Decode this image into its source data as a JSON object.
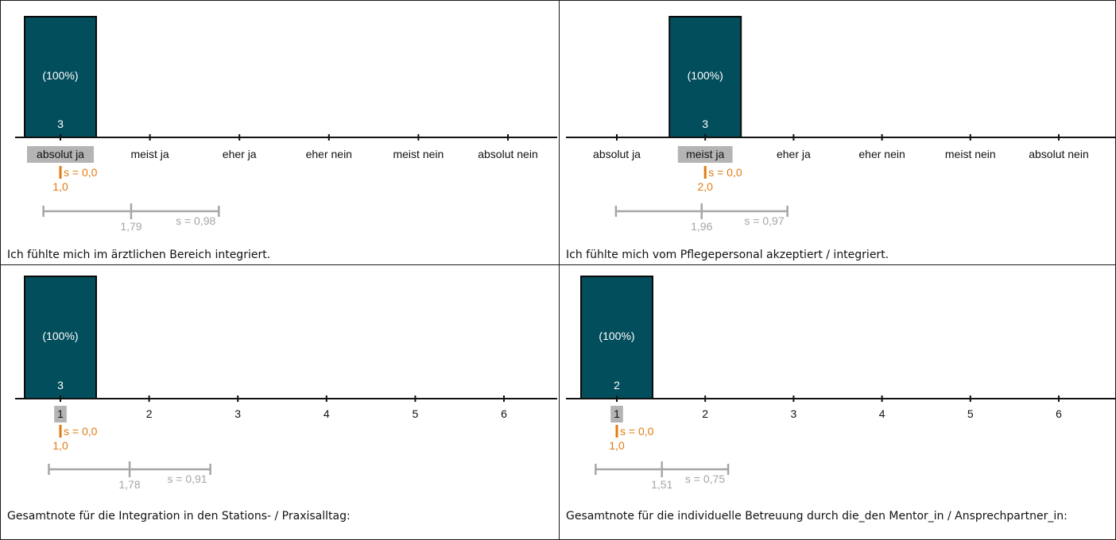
{
  "colors": {
    "bar": "#034e5c",
    "highlight": "#b4b4b4",
    "axis": "#111111",
    "median": "#e07b12",
    "mean": "#a6a6a6"
  },
  "chart_data": [
    {
      "type": "bar",
      "categories": [
        "absolut ja",
        "meist ja",
        "eher ja",
        "eher nein",
        "meist nein",
        "absolut nein"
      ],
      "values": [
        3,
        0,
        0,
        0,
        0,
        0
      ],
      "bar_percent_label": "(100%)",
      "bar_count_label": "3",
      "highlight_category": "absolut ja",
      "median": {
        "s_label": "s = 0,0",
        "value_label": "1,0",
        "value": 1.0
      },
      "mean": {
        "value_label": "1,79",
        "s_label": "s = 0,98",
        "value": 1.79,
        "s": 0.98
      },
      "caption": "Ich fühlte mich im ärztlichen Bereich integriert."
    },
    {
      "type": "bar",
      "categories": [
        "absolut ja",
        "meist ja",
        "eher ja",
        "eher nein",
        "meist nein",
        "absolut nein"
      ],
      "values": [
        0,
        3,
        0,
        0,
        0,
        0
      ],
      "bar_percent_label": "(100%)",
      "bar_count_label": "3",
      "highlight_category": "meist ja",
      "median": {
        "s_label": "s = 0,0",
        "value_label": "2,0",
        "value": 2.0
      },
      "mean": {
        "value_label": "1,96",
        "s_label": "s = 0,97",
        "value": 1.96,
        "s": 0.97
      },
      "caption": "Ich fühlte mich vom Pflegepersonal akzeptiert / integriert."
    },
    {
      "type": "bar",
      "categories": [
        "1",
        "2",
        "3",
        "4",
        "5",
        "6"
      ],
      "values": [
        3,
        0,
        0,
        0,
        0,
        0
      ],
      "bar_percent_label": "(100%)",
      "bar_count_label": "3",
      "highlight_category": "1",
      "median": {
        "s_label": "s = 0,0",
        "value_label": "1,0",
        "value": 1.0
      },
      "mean": {
        "value_label": "1,78",
        "s_label": "s = 0,91",
        "value": 1.78,
        "s": 0.91
      },
      "caption": "Gesamtnote für die Integration in den Stations- / Praxisalltag:"
    },
    {
      "type": "bar",
      "categories": [
        "1",
        "2",
        "3",
        "4",
        "5",
        "6"
      ],
      "values": [
        2,
        0,
        0,
        0,
        0,
        0
      ],
      "bar_percent_label": "(100%)",
      "bar_count_label": "2",
      "highlight_category": "1",
      "median": {
        "s_label": "s = 0,0",
        "value_label": "1,0",
        "value": 1.0
      },
      "mean": {
        "value_label": "1,51",
        "s_label": "s = 0,75",
        "value": 1.51,
        "s": 0.75
      },
      "caption": "Gesamtnote für die individuelle Betreuung durch die_den Mentor_in / Ansprechpartner_in:"
    }
  ]
}
